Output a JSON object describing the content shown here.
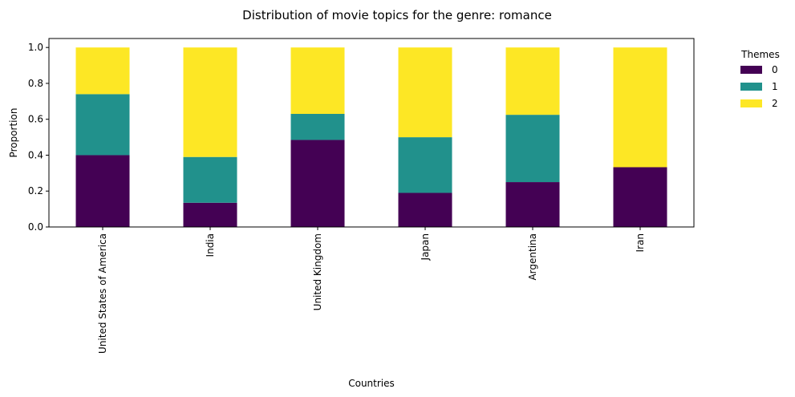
{
  "chart_data": {
    "type": "bar",
    "stacked": true,
    "title": "Distribution of movie topics for the genre: romance",
    "xlabel": "Countries",
    "ylabel": "Proportion",
    "ylim": [
      0,
      1.05
    ],
    "yticks": [
      "0.0",
      "0.2",
      "0.4",
      "0.6",
      "0.8",
      "1.0"
    ],
    "categories": [
      "United States of America",
      "India",
      "United Kingdom",
      "Japan",
      "Argentina",
      "Iran"
    ],
    "series": [
      {
        "name": "0",
        "color": "#440154",
        "values": [
          0.4,
          0.135,
          0.485,
          0.19,
          0.25,
          0.333
        ]
      },
      {
        "name": "1",
        "color": "#21918c",
        "values": [
          0.34,
          0.255,
          0.145,
          0.31,
          0.375,
          0.0
        ]
      },
      {
        "name": "2",
        "color": "#fde725",
        "values": [
          0.26,
          0.61,
          0.37,
          0.5,
          0.375,
          0.667
        ]
      }
    ],
    "legend": {
      "title": "Themes",
      "placement": "outside-right"
    },
    "grid": false
  }
}
